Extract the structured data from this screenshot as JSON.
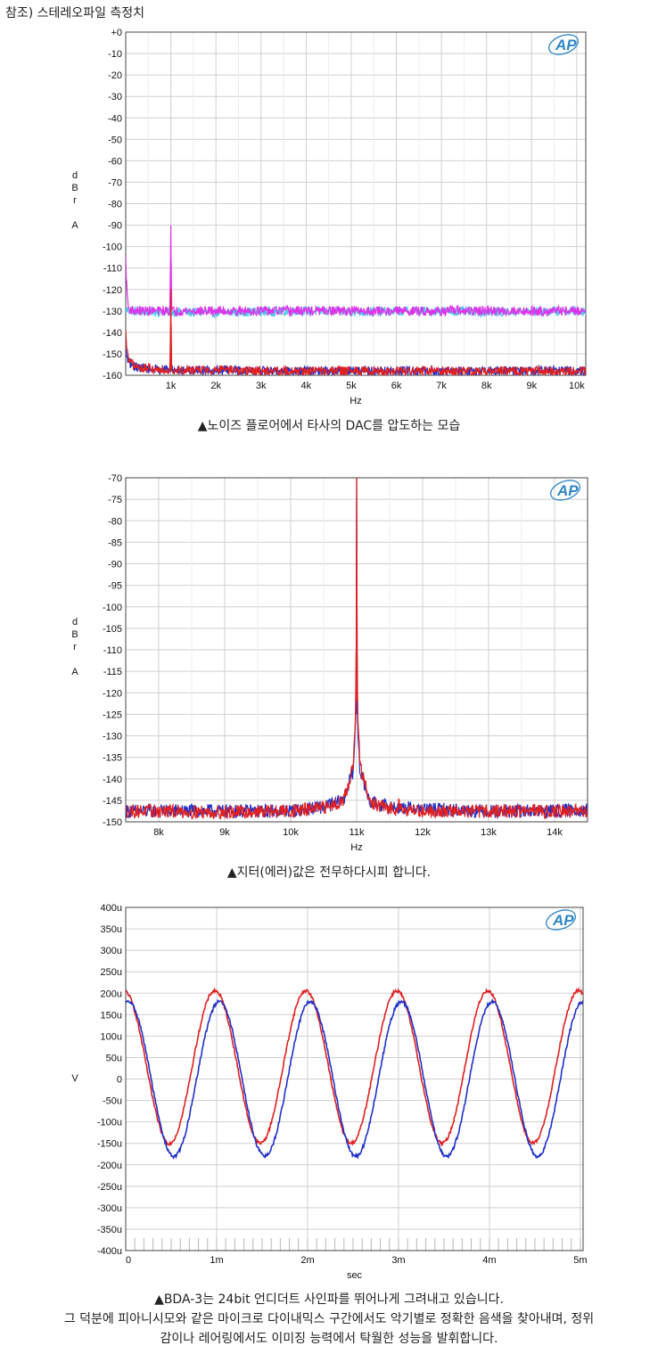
{
  "heading": "참조) 스테레오파일 측정치",
  "captions": {
    "c1": "▲노이즈 플로어에서 타사의 DAC를 압도하는 모습",
    "c2": "▲지터(에러)값은 전무하다시피 합니다.",
    "c3_line1": "▲BDA-3는 24bit 언디더트 사인파를 뛰어나게 그려내고 있습니다.",
    "c3_line2": "그 덕분에 피아니시모와 같은 마이크로 다이내믹스 구간에서도 악기별로 정확한 음색을 찾아내며, 정위",
    "c3_line3": "감이나 레어링에서도 이미징 능력에서 탁월한 성능을 발휘합니다."
  },
  "logo_text": "AP",
  "chart_data": [
    {
      "type": "line",
      "xlabel": "Hz",
      "ylabel_letters": [
        "d",
        "B",
        "r",
        "A"
      ],
      "xlim": [
        0,
        10200
      ],
      "ylim": [
        -160,
        0
      ],
      "x_ticks": [
        {
          "v": 1000,
          "label": "1k"
        },
        {
          "v": 2000,
          "label": "2k"
        },
        {
          "v": 3000,
          "label": "3k"
        },
        {
          "v": 4000,
          "label": "4k"
        },
        {
          "v": 5000,
          "label": "5k"
        },
        {
          "v": 6000,
          "label": "6k"
        },
        {
          "v": 7000,
          "label": "7k"
        },
        {
          "v": 8000,
          "label": "8k"
        },
        {
          "v": 9000,
          "label": "9k"
        },
        {
          "v": 10000,
          "label": "10k"
        }
      ],
      "y_ticks": [
        {
          "v": 0,
          "label": "+0"
        },
        {
          "v": -10,
          "label": "-10"
        },
        {
          "v": -20,
          "label": "-20"
        },
        {
          "v": -30,
          "label": "-30"
        },
        {
          "v": -40,
          "label": "-40"
        },
        {
          "v": -50,
          "label": "-50"
        },
        {
          "v": -60,
          "label": "-60"
        },
        {
          "v": -70,
          "label": "-70"
        },
        {
          "v": -80,
          "label": "-80"
        },
        {
          "v": -90,
          "label": "-90"
        },
        {
          "v": -100,
          "label": "-100"
        },
        {
          "v": -110,
          "label": "-110"
        },
        {
          "v": -120,
          "label": "-120"
        },
        {
          "v": -130,
          "label": "-130"
        },
        {
          "v": -140,
          "label": "-140"
        },
        {
          "v": -150,
          "label": "-150"
        },
        {
          "v": -160,
          "label": "-160"
        }
      ],
      "series": [
        {
          "color": "#4fc3e8",
          "x": [
            20,
            200,
            1000,
            2000,
            3000,
            4000,
            5000,
            6000,
            7000,
            8000,
            9000,
            10000,
            10200
          ],
          "y": [
            -129.5,
            -130.2,
            -130.5,
            -130.8,
            -130.3,
            -130,
            -130.4,
            -130.2,
            -130,
            -130.5,
            -130.3,
            -130,
            -130.2
          ]
        },
        {
          "color": "#e030e8",
          "x": [
            0,
            20,
            60,
            200,
            980,
            1000,
            1020,
            2000,
            3000,
            4000,
            5000,
            6000,
            7000,
            8000,
            9000,
            10000,
            10200
          ],
          "y": [
            -105,
            -118,
            -129,
            -130,
            -130,
            -90,
            -130,
            -130,
            -130,
            -130,
            -130,
            -130,
            -130,
            -130,
            -130,
            -130,
            -130
          ]
        },
        {
          "color": "#2030c8",
          "x": [
            20,
            60,
            200,
            500,
            1000,
            2000,
            3000,
            4000,
            5000,
            6000,
            7000,
            8000,
            9000,
            10000,
            10200
          ],
          "y": [
            -150,
            -154,
            -156,
            -157,
            -157.5,
            -157.5,
            -158,
            -158,
            -158,
            -158,
            -158,
            -158,
            -158,
            -157.8,
            -158
          ]
        },
        {
          "color": "#e02020",
          "x": [
            0,
            20,
            60,
            200,
            500,
            980,
            1000,
            1020,
            2000,
            3000,
            4000,
            5000,
            6000,
            7000,
            8000,
            9000,
            10000,
            10200
          ],
          "y": [
            -140,
            -147,
            -153,
            -156,
            -157,
            -157.5,
            -120,
            -157.5,
            -157.5,
            -158,
            -158,
            -158,
            -158,
            -158,
            -158,
            -158,
            -158,
            -158
          ]
        }
      ]
    },
    {
      "type": "line",
      "xlabel": "Hz",
      "ylabel_letters": [
        "d",
        "B",
        "r",
        "A"
      ],
      "xlim": [
        7500,
        14500
      ],
      "ylim": [
        -150,
        -70
      ],
      "x_ticks": [
        {
          "v": 8000,
          "label": "8k"
        },
        {
          "v": 9000,
          "label": "9k"
        },
        {
          "v": 10000,
          "label": "10k"
        },
        {
          "v": 11000,
          "label": "11k"
        },
        {
          "v": 12000,
          "label": "12k"
        },
        {
          "v": 13000,
          "label": "13k"
        },
        {
          "v": 14000,
          "label": "14k"
        }
      ],
      "y_ticks": [
        {
          "v": -70,
          "label": "-70"
        },
        {
          "v": -75,
          "label": "-75"
        },
        {
          "v": -80,
          "label": "-80"
        },
        {
          "v": -85,
          "label": "-85"
        },
        {
          "v": -90,
          "label": "-90"
        },
        {
          "v": -95,
          "label": "-95"
        },
        {
          "v": -100,
          "label": "-100"
        },
        {
          "v": -105,
          "label": "-105"
        },
        {
          "v": -110,
          "label": "-110"
        },
        {
          "v": -115,
          "label": "-115"
        },
        {
          "v": -120,
          "label": "-120"
        },
        {
          "v": -125,
          "label": "-125"
        },
        {
          "v": -130,
          "label": "-130"
        },
        {
          "v": -135,
          "label": "-135"
        },
        {
          "v": -140,
          "label": "-140"
        },
        {
          "v": -145,
          "label": "-145"
        },
        {
          "v": -150,
          "label": "-150"
        }
      ],
      "series": [
        {
          "color": "#2030c8",
          "x": [
            7500,
            8000,
            9000,
            10000,
            10500,
            10800,
            10950,
            10990,
            11000,
            11010,
            11050,
            11200,
            11500,
            12000,
            13000,
            14000,
            14500
          ],
          "y": [
            -147.5,
            -147.5,
            -147.5,
            -147.5,
            -146.5,
            -145,
            -138,
            -125,
            -70,
            -125,
            -138,
            -145.5,
            -146.5,
            -147,
            -147.5,
            -147.5,
            -147.2
          ]
        },
        {
          "color": "#e02020",
          "x": [
            7500,
            8000,
            9000,
            10000,
            10500,
            10800,
            10950,
            10990,
            11000,
            11010,
            11050,
            11200,
            11500,
            11620,
            11640,
            11660,
            12000,
            13000,
            14000,
            14500
          ],
          "y": [
            -147.5,
            -147.5,
            -147.8,
            -147.5,
            -146.8,
            -145,
            -137,
            -122,
            -70,
            -122,
            -137,
            -145.5,
            -147,
            -147,
            -143.5,
            -147,
            -147.5,
            -147.5,
            -147.5,
            -147.5
          ]
        }
      ]
    },
    {
      "type": "line",
      "xlabel": "sec",
      "ylabel_letters": [
        "V"
      ],
      "xlim": [
        0,
        0.00503
      ],
      "ylim": [
        -400,
        400
      ],
      "x_ticks": [
        {
          "v": 0,
          "label": "0"
        },
        {
          "v": 0.001,
          "label": "1m"
        },
        {
          "v": 0.002,
          "label": "2m"
        },
        {
          "v": 0.003,
          "label": "3m"
        },
        {
          "v": 0.004,
          "label": "4m"
        },
        {
          "v": 0.005,
          "label": "5m"
        }
      ],
      "y_ticks": [
        {
          "v": 400,
          "label": "400u"
        },
        {
          "v": 350,
          "label": "350u"
        },
        {
          "v": 300,
          "label": "300u"
        },
        {
          "v": 250,
          "label": "250u"
        },
        {
          "v": 200,
          "label": "200u"
        },
        {
          "v": 150,
          "label": "150u"
        },
        {
          "v": 100,
          "label": "100u"
        },
        {
          "v": 50,
          "label": "50u"
        },
        {
          "v": 0,
          "label": "0"
        },
        {
          "v": -50,
          "label": "-50u"
        },
        {
          "v": -100,
          "label": "-100u"
        },
        {
          "v": -150,
          "label": "-150u"
        },
        {
          "v": -200,
          "label": "-200u"
        },
        {
          "v": -250,
          "label": "-250u"
        },
        {
          "v": -300,
          "label": "-300u"
        },
        {
          "v": -350,
          "label": "-350u"
        },
        {
          "v": -400,
          "label": "-400u"
        }
      ],
      "series": [
        {
          "color": "#e02020",
          "kind": "sine",
          "offset": 28,
          "amplitude": 178,
          "frequency": 1000,
          "peak_time": 0.00098
        },
        {
          "color": "#2030c8",
          "kind": "sine",
          "offset": 0,
          "amplitude": 180,
          "frequency": 1000,
          "peak_time": 0.00103
        }
      ]
    }
  ]
}
